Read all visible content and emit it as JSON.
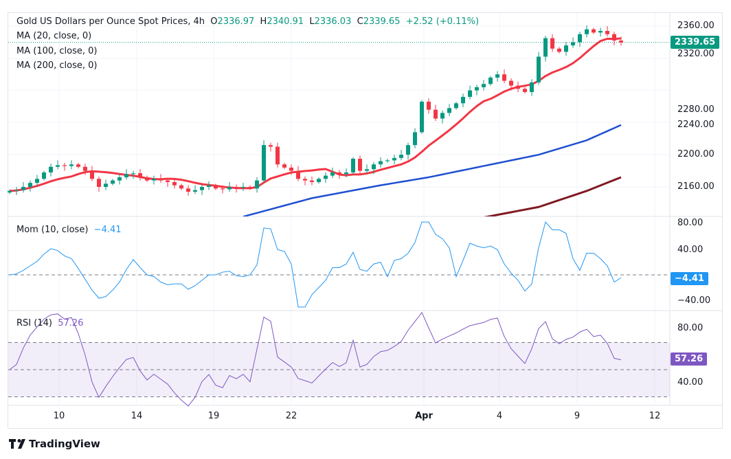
{
  "header": {
    "title": "Gold US Dollars per Ounce Spot Prices, 4h",
    "open_label": "O",
    "open": "2336.97",
    "high_label": "H",
    "high": "2340.91",
    "low_label": "L",
    "low": "2336.03",
    "close_label": "C",
    "close": "2339.65",
    "change": "+2.52 (+0.11%)"
  },
  "indicators": {
    "ma20": "MA (20, close, 0)",
    "ma100": "MA (100, close, 0)",
    "ma200": "MA (200, close, 0)",
    "mom": "Mom (10, close)",
    "mom_value": "−4.41",
    "rsi": "RSI (14)",
    "rsi_value": "57.26"
  },
  "price_tag": "2339.65",
  "mom_tag": "−4.41",
  "rsi_tag": "57.26",
  "price_axis": [
    "2360.00",
    "2320.00",
    "2280.00",
    "2240.00",
    "2200.00",
    "2160.00"
  ],
  "mom_axis": [
    "80.00",
    "40.00",
    "−40.00"
  ],
  "rsi_axis": [
    "80.00",
    "40.00"
  ],
  "date_labels": [
    "10",
    "14",
    "19",
    "22",
    "Apr",
    "4",
    "9",
    "12"
  ],
  "brand": "TradingView",
  "colors": {
    "up": "#089981",
    "down": "#f23645",
    "ma20": "#f23645",
    "ma100": "#1e4fd1",
    "ma200": "#801922",
    "mom": "#2196f3",
    "rsi": "#7e57c2"
  },
  "chart_data": {
    "type": "candlestick",
    "symbol": "XAUUSD",
    "timeframe": "4h",
    "ylim": [
      2120,
      2370
    ],
    "closes": [
      2155,
      2156,
      2160,
      2165,
      2170,
      2178,
      2185,
      2187,
      2186,
      2188,
      2185,
      2180,
      2170,
      2160,
      2164,
      2168,
      2172,
      2176,
      2177,
      2172,
      2168,
      2170,
      2168,
      2166,
      2162,
      2158,
      2154,
      2156,
      2160,
      2162,
      2158,
      2157,
      2160,
      2159,
      2160,
      2158,
      2168,
      2212,
      2210,
      2188,
      2184,
      2180,
      2170,
      2168,
      2166,
      2170,
      2174,
      2178,
      2176,
      2178,
      2195,
      2180,
      2182,
      2188,
      2192,
      2193,
      2196,
      2200,
      2212,
      2228,
      2266,
      2256,
      2245,
      2252,
      2258,
      2264,
      2272,
      2280,
      2284,
      2288,
      2296,
      2300,
      2292,
      2286,
      2282,
      2278,
      2290,
      2322,
      2345,
      2332,
      2328,
      2336,
      2340,
      2350,
      2356,
      2352,
      2354,
      2350,
      2342,
      2339.65
    ],
    "ma100": [
      [
        34,
        2123
      ],
      [
        44,
        2146
      ],
      [
        54,
        2162
      ],
      [
        61,
        2172
      ],
      [
        69,
        2186
      ],
      [
        77,
        2200
      ],
      [
        84,
        2218
      ],
      [
        89,
        2237
      ]
    ],
    "ma200": [
      [
        69,
        2122
      ],
      [
        77,
        2135
      ],
      [
        84,
        2155
      ],
      [
        89,
        2172
      ]
    ],
    "mom_range": [
      -55,
      85
    ],
    "rsi_range": [
      20,
      95
    ],
    "rsi_bands": [
      70,
      50,
      30
    ]
  }
}
